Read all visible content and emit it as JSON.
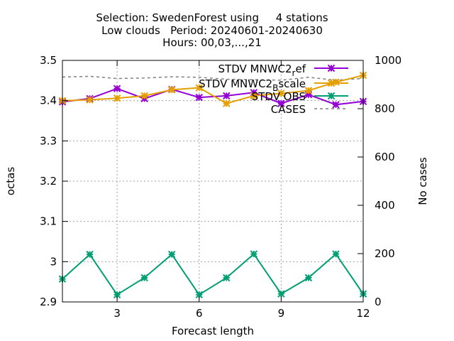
{
  "chart_data": {
    "type": "line",
    "title_lines": [
      "Selection: SwedenForest using     4 stations",
      "Low clouds   Period: 20240601-20240630",
      "Hours: 00,03,...,21"
    ],
    "xlabel": "Forecast length",
    "ylabel": "octas",
    "y2label": "No cases",
    "x": [
      1,
      2,
      3,
      4,
      5,
      6,
      7,
      8,
      9,
      10,
      11,
      12
    ],
    "xlim": [
      1,
      12
    ],
    "xticks": [
      3,
      6,
      9,
      12
    ],
    "ylim": [
      2.9,
      3.5
    ],
    "yticks": [
      2.9,
      3.0,
      3.1,
      3.2,
      3.3,
      3.4,
      3.5
    ],
    "ytick_labels": [
      "2.9",
      "3",
      "3.1",
      "3.2",
      "3.3",
      "3.4",
      "3.5"
    ],
    "y2lim": [
      0,
      1000
    ],
    "y2ticks": [
      0,
      200,
      400,
      600,
      800,
      1000
    ],
    "grid": true,
    "legend_position": "top-right",
    "series": [
      {
        "name": "STDV MNWC2_ref",
        "legend_main": "STDV MNWC2",
        "legend_sub": "r",
        "legend_tail": "ef",
        "axis": "y",
        "color": "#9400d3",
        "marker": "asterisk",
        "values": [
          3.397,
          3.405,
          3.43,
          3.405,
          3.428,
          3.408,
          3.412,
          3.42,
          3.393,
          3.415,
          3.39,
          3.398
        ]
      },
      {
        "name": "STDV MNWC2_Bscale",
        "legend_main": "STDV MNWC2",
        "legend_sub": "B",
        "legend_tail": "scale",
        "axis": "y",
        "color": "#e69f00",
        "marker": "asterisk",
        "values": [
          3.4,
          3.402,
          3.406,
          3.412,
          3.427,
          3.432,
          3.393,
          3.412,
          3.418,
          3.425,
          3.446,
          3.463
        ]
      },
      {
        "name": "STDV OBS",
        "legend_main": "STDV OBS",
        "legend_sub": "",
        "legend_tail": "",
        "axis": "y",
        "color": "#009e73",
        "marker": "asterisk",
        "values": [
          2.957,
          3.018,
          2.918,
          2.96,
          3.018,
          2.918,
          2.96,
          3.019,
          2.92,
          2.96,
          3.019,
          2.92
        ]
      },
      {
        "name": "CASES",
        "legend_main": "CASES",
        "legend_sub": "",
        "legend_tail": "",
        "axis": "y2",
        "color": "#808080",
        "marker": "none",
        "dashed": true,
        "values": [
          931,
          934,
          925,
          927,
          932,
          930,
          922,
          920,
          918,
          930,
          918,
          925
        ]
      }
    ]
  }
}
